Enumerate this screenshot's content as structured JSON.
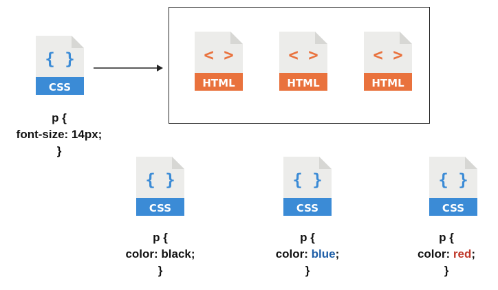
{
  "colors": {
    "css_blue": "#3b8bd6",
    "css_blue_dark": "#2f7cc7",
    "html_orange": "#e9723d",
    "html_orange_dark": "#d9652f",
    "page_fill": "#ececea",
    "page_fold": "#d7d7d4",
    "value_blue": "#1f5fa8",
    "value_red": "#c0392b"
  },
  "icons": {
    "css_symbol": "{ }",
    "css_label": "CSS",
    "html_symbol": "< >",
    "html_label": "HTML"
  },
  "source_css": {
    "line1": "p {",
    "line2": "font-size: 14px;",
    "line3": "}"
  },
  "rules": [
    {
      "open": "p {",
      "prop": "color: ",
      "value": "black",
      "semi": ";",
      "close": "}"
    },
    {
      "open": "p {",
      "prop": "color: ",
      "value": "blue",
      "semi": ";",
      "close": "}"
    },
    {
      "open": "p {",
      "prop": "color: ",
      "value": "red",
      "semi": ";",
      "close": "}"
    }
  ]
}
